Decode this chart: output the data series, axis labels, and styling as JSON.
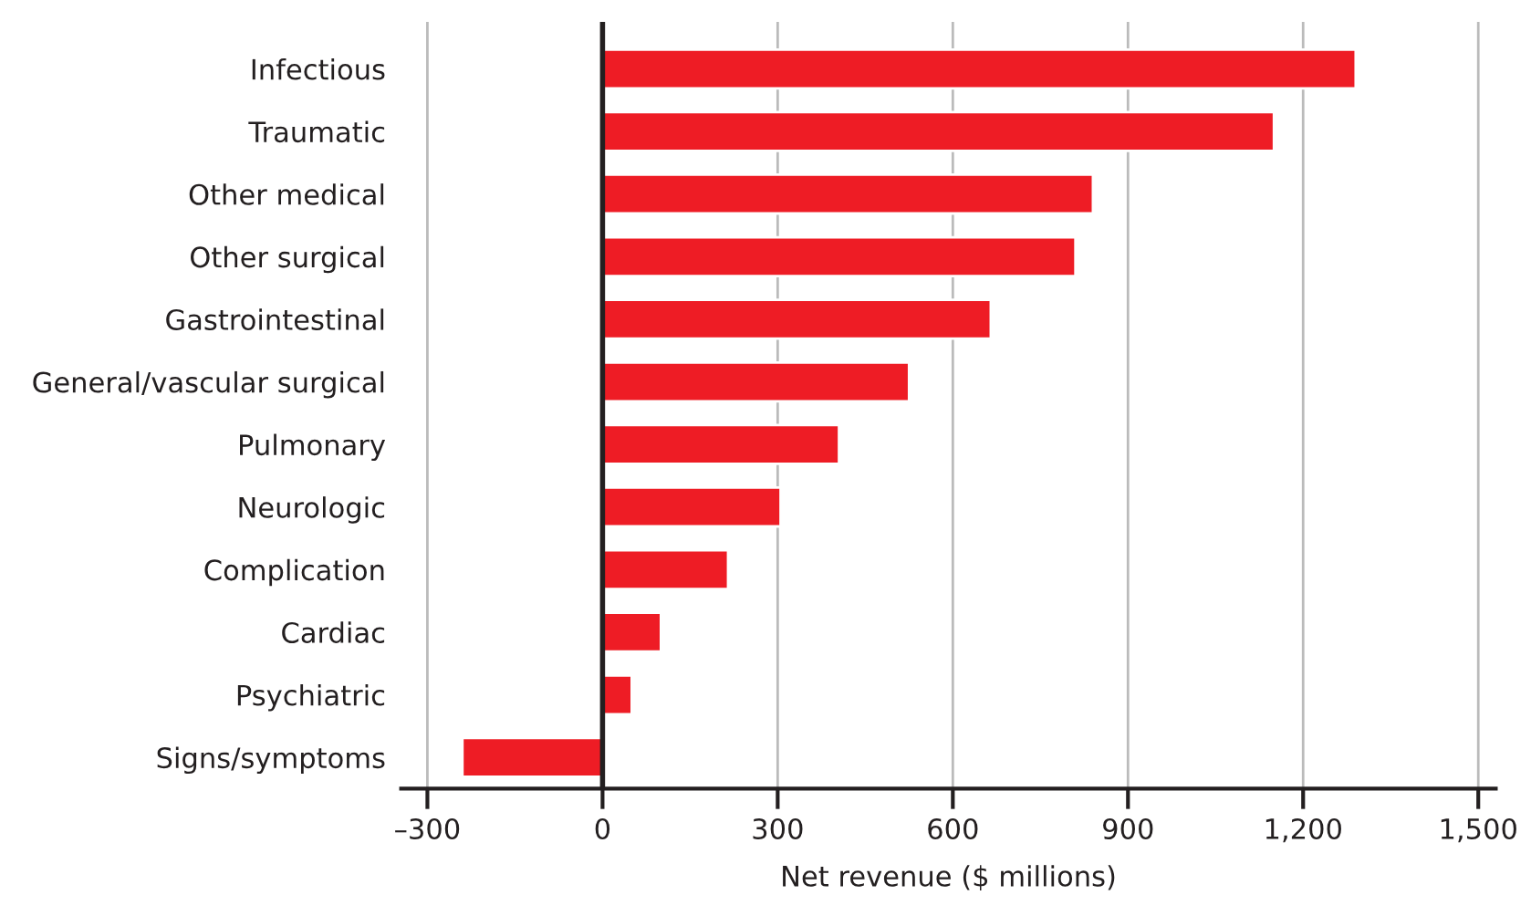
{
  "chart_data": {
    "type": "bar",
    "orientation": "horizontal",
    "xlabel": "Net revenue ($ millions)",
    "categories": [
      "Infectious",
      "Traumatic",
      "Other medical",
      "Other surgical",
      "Gastrointestinal",
      "General/vascular surgical",
      "Pulmonary",
      "Neurologic",
      "Complication",
      "Cardiac",
      "Psychiatric",
      "Signs/symptoms"
    ],
    "values": [
      1290,
      1150,
      840,
      810,
      665,
      525,
      405,
      305,
      215,
      100,
      50,
      -240
    ],
    "color": "#ee1c25",
    "xlim": [
      -345,
      1530
    ],
    "xticks": [
      {
        "value": -300,
        "label": "–300"
      },
      0,
      300,
      600,
      900,
      {
        "value": 1200,
        "label": "1,200"
      },
      {
        "value": 1500,
        "label": "1,500"
      }
    ],
    "grid": "x",
    "ref_lines": [
      {
        "axis": "x",
        "value": 0,
        "color": "#231f20"
      }
    ]
  }
}
